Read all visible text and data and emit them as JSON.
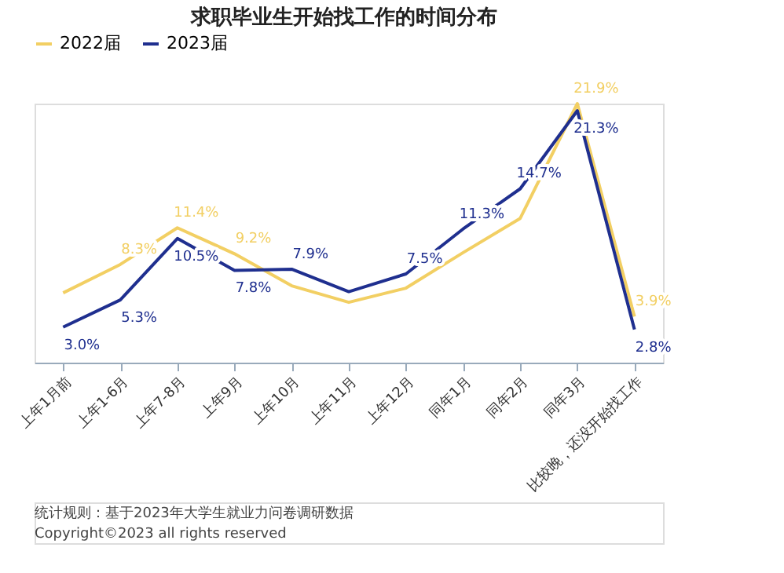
{
  "chart_data": {
    "type": "line",
    "title": "求职毕业生开始找工作的时间分布",
    "categories": [
      "上年1月前",
      "上年1-6月",
      "上年7-8月",
      "上年9月",
      "上年10月",
      "上年11月",
      "上年12月",
      "同年1月",
      "同年2月",
      "同年3月",
      "比较晚，还没开始找工作"
    ],
    "series": [
      {
        "name": "2022届",
        "color": "#f2cf63",
        "values": [
          5.9,
          8.3,
          11.4,
          9.2,
          6.5,
          5.1,
          6.3,
          9.3,
          12.2,
          21.9,
          3.9
        ],
        "value_labels": [
          null,
          "8.3%",
          "11.4%",
          "9.2%",
          null,
          null,
          null,
          null,
          null,
          "21.9%",
          "3.9%"
        ]
      },
      {
        "name": "2023届",
        "color": "#1f2f8f",
        "values": [
          3.0,
          5.3,
          10.5,
          7.8,
          7.9,
          6.0,
          7.5,
          11.3,
          14.7,
          21.3,
          2.8
        ],
        "value_labels": [
          "3.0%",
          "5.3%",
          "10.5%",
          "7.8%",
          "7.9%",
          null,
          "7.5%",
          "11.3%",
          "14.7%",
          "21.3%",
          "2.8%"
        ]
      }
    ],
    "legend": "top",
    "marker": "none",
    "line_style": "solid",
    "annotations": [
      "统计规则：基于2023年大学生就业力问卷调研数据",
      "Copyright©2023 all rights reserved"
    ]
  }
}
